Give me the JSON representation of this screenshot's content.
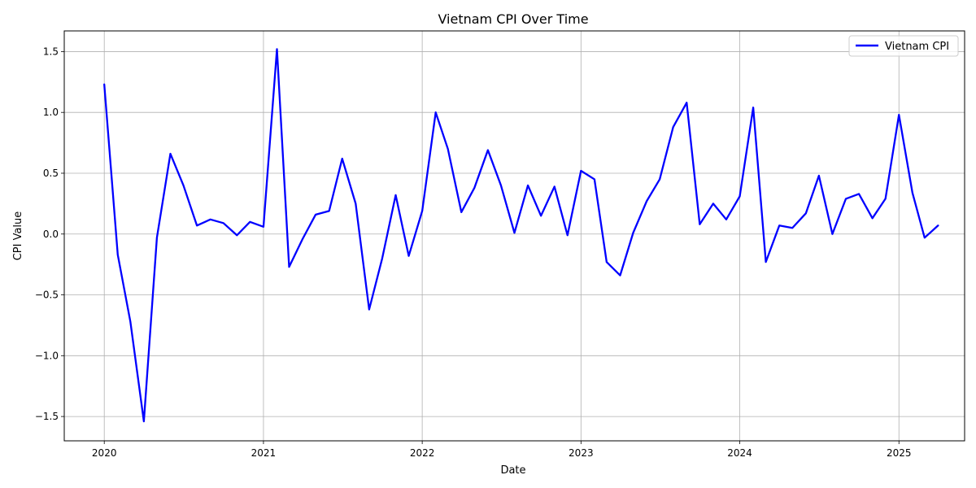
{
  "chart_data": {
    "type": "line",
    "title": "Vietnam CPI Over Time",
    "xlabel": "Date",
    "ylabel": "CPI Value",
    "xlim": [
      "2019-10-01",
      "2025-06-01"
    ],
    "ylim": [
      -1.7,
      1.67
    ],
    "x_ticks": [
      "2020",
      "2021",
      "2022",
      "2023",
      "2024",
      "2025"
    ],
    "y_ticks": [
      -1.5,
      -1.0,
      -0.5,
      0.0,
      0.5,
      1.0,
      1.5
    ],
    "y_tick_labels": [
      "−1.5",
      "−1.0",
      "−0.5",
      "0.0",
      "0.5",
      "1.0",
      "1.5"
    ],
    "grid": true,
    "legend_position": "top-right",
    "series": [
      {
        "name": "Vietnam CPI",
        "color": "#0000ff",
        "x": [
          "2020-01-01",
          "2020-02-01",
          "2020-03-01",
          "2020-04-01",
          "2020-05-01",
          "2020-06-01",
          "2020-07-01",
          "2020-08-01",
          "2020-09-01",
          "2020-10-01",
          "2020-11-01",
          "2020-12-01",
          "2021-01-01",
          "2021-02-01",
          "2021-03-01",
          "2021-04-01",
          "2021-05-01",
          "2021-06-01",
          "2021-07-01",
          "2021-08-01",
          "2021-09-01",
          "2021-10-01",
          "2021-11-01",
          "2021-12-01",
          "2022-01-01",
          "2022-02-01",
          "2022-03-01",
          "2022-04-01",
          "2022-05-01",
          "2022-06-01",
          "2022-07-01",
          "2022-08-01",
          "2022-09-01",
          "2022-10-01",
          "2022-11-01",
          "2022-12-01",
          "2023-01-01",
          "2023-02-01",
          "2023-03-01",
          "2023-04-01",
          "2023-05-01",
          "2023-06-01",
          "2023-07-01",
          "2023-08-01",
          "2023-09-01",
          "2023-10-01",
          "2023-11-01",
          "2023-12-01",
          "2024-01-01",
          "2024-02-01",
          "2024-03-01",
          "2024-04-01",
          "2024-05-01",
          "2024-06-01",
          "2024-07-01",
          "2024-08-01",
          "2024-09-01",
          "2024-10-01",
          "2024-11-01",
          "2024-12-01",
          "2025-01-01",
          "2025-02-01",
          "2025-03-01",
          "2025-04-01"
        ],
        "values": [
          1.23,
          -0.17,
          -0.72,
          -1.54,
          -0.03,
          0.66,
          0.4,
          0.07,
          0.12,
          0.09,
          -0.01,
          0.1,
          0.06,
          1.52,
          -0.27,
          -0.04,
          0.16,
          0.19,
          0.62,
          0.25,
          -0.62,
          -0.2,
          0.32,
          -0.18,
          0.19,
          1.0,
          0.7,
          0.18,
          0.38,
          0.69,
          0.4,
          0.01,
          0.4,
          0.15,
          0.39,
          -0.01,
          0.52,
          0.45,
          -0.23,
          -0.34,
          0.01,
          0.27,
          0.45,
          0.88,
          1.08,
          0.08,
          0.25,
          0.12,
          0.31,
          1.04,
          -0.23,
          0.07,
          0.05,
          0.17,
          0.48,
          0.0,
          0.29,
          0.33,
          0.13,
          0.29,
          0.98,
          0.34,
          -0.03,
          0.07
        ]
      }
    ]
  }
}
